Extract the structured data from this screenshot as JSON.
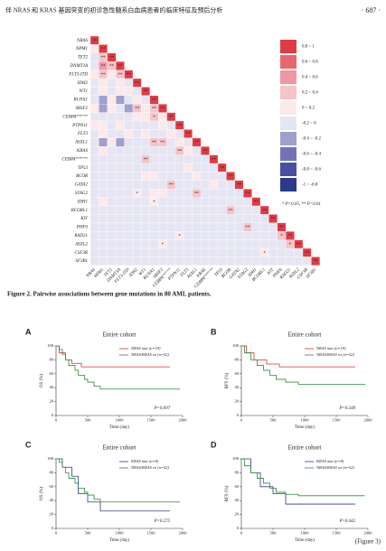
{
  "header": {
    "title": "伴 NRAS 和 KRAS 基因突变的初诊急性髓系白血病患者的临床特征及预后分析",
    "page": "· 687 ·"
  },
  "heatmap": {
    "genes": [
      "NRAS",
      "NPM1",
      "TET2",
      "DNMT3A",
      "FLT3-ITD",
      "IDH2",
      "WT1",
      "RUNX1",
      "SRSF2",
      {
        "text": "CEBPA",
        "sup": "single-mut"
      },
      "PTPN11",
      "FLT3",
      "ASXL1",
      "KRAS",
      {
        "text": "CEBPA",
        "sup": "double-mut"
      },
      "TP53",
      "BCOR",
      "GATA2",
      "STAG2",
      "IDH1",
      "BCORL1",
      "KIT",
      "PHF6",
      "RAD21",
      "ASXL2",
      "CSF3R",
      "SF3B1"
    ],
    "values": [
      [
        1
      ],
      [
        0.1,
        1
      ],
      [
        0,
        0.4,
        1
      ],
      [
        -0.1,
        0.5,
        0.4,
        1
      ],
      [
        0.1,
        0.4,
        0.1,
        0.4,
        1
      ],
      [
        0,
        0.1,
        0,
        0.1,
        0,
        1
      ],
      [
        0,
        0.2,
        -0.1,
        0.1,
        0.2,
        -0.1,
        1
      ],
      [
        -0.1,
        -0.3,
        0.1,
        -0.2,
        -0.1,
        0.1,
        0,
        1
      ],
      [
        0.1,
        -0.2,
        0.2,
        -0.1,
        -0.2,
        0.3,
        0.1,
        0.3,
        1
      ],
      [
        0,
        -0.1,
        0,
        -0.1,
        0,
        0.1,
        0.1,
        0.3,
        0.1,
        1
      ],
      [
        0.1,
        0.2,
        0,
        0.1,
        0,
        0,
        -0.1,
        0,
        0.1,
        0,
        1
      ],
      [
        0,
        0.1,
        0,
        0,
        0.1,
        0,
        0.1,
        -0.1,
        0,
        0.1,
        0,
        1
      ],
      [
        0,
        -0.3,
        0.1,
        -0.2,
        -0.1,
        0,
        -0.1,
        0.4,
        0.4,
        0,
        0.1,
        0,
        1
      ],
      [
        -0.1,
        0.1,
        0,
        0,
        0,
        0,
        0,
        0,
        0,
        0,
        0.4,
        0.1,
        0,
        1
      ],
      [
        0,
        -0.1,
        -0.1,
        -0.1,
        0,
        0,
        0.4,
        0,
        0,
        0,
        0,
        0,
        0,
        0,
        1
      ],
      [
        0,
        -0.1,
        0,
        0,
        0,
        0,
        0,
        0,
        0,
        0,
        0,
        0.1,
        0,
        0,
        0,
        1
      ],
      [
        0,
        0,
        0,
        -0.1,
        0,
        0,
        0.1,
        0.1,
        0,
        0,
        0,
        0,
        0.1,
        0,
        0,
        0,
        1
      ],
      [
        0,
        -0.1,
        0,
        0,
        0,
        0,
        0,
        0,
        0,
        0.3,
        0,
        0,
        0,
        0,
        0.2,
        0,
        0,
        1
      ],
      [
        0,
        -0.1,
        0,
        0,
        0,
        0.2,
        0,
        0.2,
        0.1,
        0,
        0,
        0,
        0.3,
        0,
        0,
        0,
        0,
        0,
        1
      ],
      [
        0,
        0.1,
        0,
        0,
        0,
        0,
        0,
        0.2,
        0,
        0,
        0,
        0,
        0,
        0,
        0,
        0,
        0,
        0,
        0,
        1
      ],
      [
        0,
        0,
        0,
        0,
        0,
        0,
        0,
        0,
        0,
        0,
        0,
        0,
        0,
        0,
        0,
        0,
        0.4,
        0,
        0,
        0,
        1
      ],
      [
        0,
        0,
        0,
        0,
        0,
        0,
        0,
        0,
        0,
        0,
        0,
        0,
        0,
        0,
        0,
        0,
        0,
        0,
        0,
        0,
        0,
        1
      ],
      [
        0,
        0,
        0,
        0,
        0,
        0,
        0,
        0,
        0,
        0,
        0,
        0,
        0,
        0,
        0,
        0,
        0,
        0,
        0.4,
        0,
        0,
        0,
        1
      ],
      [
        0,
        0,
        0,
        0,
        0,
        0,
        0,
        0,
        0,
        0,
        0.2,
        0,
        0,
        0,
        0,
        0,
        0,
        0,
        0,
        0,
        0,
        0,
        0.3,
        1
      ],
      [
        0,
        0,
        0,
        0,
        0,
        0,
        0,
        0,
        0.2,
        0,
        0,
        0,
        0,
        0,
        0,
        0,
        0,
        0,
        0,
        0,
        0,
        0,
        0,
        0.3,
        1
      ],
      [
        0,
        0,
        0,
        0,
        0,
        0,
        0,
        0,
        0,
        0,
        0,
        0,
        0,
        0,
        0,
        0,
        0,
        0,
        0,
        0,
        0.2,
        0,
        0,
        0,
        0,
        1
      ],
      [
        0,
        0,
        0,
        0,
        0,
        0,
        0,
        0,
        0,
        0,
        0,
        0,
        0,
        0,
        0,
        0,
        0,
        0,
        0,
        0,
        0,
        0,
        0,
        0,
        0,
        0,
        1
      ]
    ],
    "sig": [
      [
        "**"
      ],
      [
        null,
        "**"
      ],
      [
        null,
        "**",
        "**"
      ],
      [
        null,
        "**",
        "**",
        "**"
      ],
      [
        null,
        "**",
        null,
        "**",
        "**"
      ],
      [
        null,
        null,
        null,
        null,
        null,
        "**"
      ],
      [
        null,
        null,
        null,
        null,
        null,
        null,
        "**"
      ],
      [
        null,
        null,
        null,
        null,
        null,
        null,
        null,
        "**"
      ],
      [
        null,
        null,
        null,
        null,
        null,
        "**",
        null,
        "**",
        "**"
      ],
      [
        null,
        null,
        null,
        null,
        null,
        null,
        null,
        "*",
        null,
        "**"
      ],
      [
        null,
        null,
        null,
        null,
        null,
        null,
        null,
        null,
        null,
        null,
        "**"
      ],
      [
        null,
        null,
        null,
        null,
        null,
        null,
        null,
        null,
        null,
        null,
        null,
        "**"
      ],
      [
        null,
        null,
        null,
        null,
        null,
        null,
        null,
        "**",
        "**",
        null,
        null,
        null,
        "**"
      ],
      [
        null,
        null,
        null,
        null,
        null,
        null,
        null,
        null,
        null,
        null,
        "**",
        null,
        null,
        "**"
      ],
      [
        null,
        null,
        null,
        null,
        null,
        null,
        "**",
        null,
        null,
        null,
        null,
        null,
        null,
        null,
        "**"
      ],
      [
        null,
        null,
        null,
        null,
        null,
        null,
        null,
        null,
        null,
        null,
        null,
        null,
        null,
        null,
        null,
        "**"
      ],
      [
        null,
        null,
        null,
        null,
        null,
        null,
        null,
        null,
        null,
        null,
        null,
        null,
        null,
        null,
        null,
        null,
        "**"
      ],
      [
        null,
        null,
        null,
        null,
        null,
        null,
        null,
        null,
        null,
        "**",
        null,
        null,
        null,
        null,
        null,
        null,
        null,
        "**"
      ],
      [
        null,
        null,
        null,
        null,
        null,
        "*",
        null,
        null,
        null,
        null,
        null,
        null,
        "**",
        null,
        null,
        null,
        null,
        null,
        "**"
      ],
      [
        null,
        null,
        null,
        null,
        null,
        null,
        null,
        "*",
        null,
        null,
        null,
        null,
        null,
        null,
        null,
        null,
        null,
        null,
        null,
        "**"
      ],
      [
        null,
        null,
        null,
        null,
        null,
        null,
        null,
        null,
        null,
        null,
        null,
        null,
        null,
        null,
        null,
        null,
        "**",
        null,
        null,
        null,
        "**"
      ],
      [
        null,
        null,
        null,
        null,
        null,
        null,
        null,
        null,
        null,
        null,
        null,
        null,
        null,
        null,
        null,
        null,
        null,
        null,
        null,
        null,
        null,
        "**"
      ],
      [
        null,
        null,
        null,
        null,
        null,
        null,
        null,
        null,
        null,
        null,
        null,
        null,
        null,
        null,
        null,
        null,
        null,
        null,
        "**",
        null,
        null,
        null,
        "**"
      ],
      [
        null,
        null,
        null,
        null,
        null,
        null,
        null,
        null,
        null,
        null,
        "*",
        null,
        null,
        null,
        null,
        null,
        null,
        null,
        null,
        null,
        null,
        null,
        "*",
        "**"
      ],
      [
        null,
        null,
        null,
        null,
        null,
        null,
        null,
        null,
        "*",
        null,
        null,
        null,
        null,
        null,
        null,
        null,
        null,
        null,
        null,
        null,
        null,
        null,
        null,
        "*",
        "**"
      ],
      [
        null,
        null,
        null,
        null,
        null,
        null,
        null,
        null,
        null,
        null,
        null,
        null,
        null,
        null,
        null,
        null,
        null,
        null,
        null,
        null,
        "*",
        null,
        null,
        null,
        null,
        "**"
      ],
      [
        null,
        null,
        null,
        null,
        null,
        null,
        null,
        null,
        null,
        null,
        null,
        null,
        null,
        null,
        null,
        null,
        null,
        null,
        null,
        null,
        null,
        null,
        null,
        null,
        null,
        null,
        "**"
      ]
    ],
    "bins": [
      -1,
      -0.8,
      -0.6,
      -0.4,
      -0.2,
      0,
      0.2,
      0.4,
      0.6,
      0.8,
      1
    ],
    "bin_labels": [
      "-1 ~ -0.8",
      "-0.8 ~ -0.6",
      "-0.6 ~ -0.4",
      "-0.4 ~ -0.2",
      "-0.2 ~ 0",
      "0 ~ 0.2",
      "0.2 ~ 0.4",
      "0.4 ~ 0.6",
      "0.6 ~ 0.8",
      "0.8 ~ 1"
    ],
    "bin_colors": [
      "#2a3a8c",
      "#4a4fa0",
      "#7272b4",
      "#a09fce",
      "#e6e5f3",
      "#fbe9eb",
      "#f5c3c9",
      "#ef98a2",
      "#e8676f",
      "#e03b44"
    ],
    "note": "* P<0.05, ** P<0.01"
  },
  "figure2_caption": "Figure 2.  Pairwise associations between gene mutations in 80 AML patients.",
  "km_panels": [
    {
      "letter": "A",
      "title": "Entire cohort",
      "ylabel": "OS (%)",
      "xlabel": "Time (day)",
      "xlim": [
        0,
        2000
      ],
      "ylim": [
        0,
        100
      ],
      "xticks": [
        0,
        500,
        1000,
        1500,
        2000
      ],
      "yticks": [
        0,
        20,
        40,
        60,
        80,
        100
      ],
      "p": "P=0.097",
      "series": [
        {
          "name": "NRAS mut (n=19)",
          "color": "#d7312e",
          "x": [
            0,
            50,
            150,
            250,
            400,
            1800
          ],
          "values": [
            100,
            90,
            80,
            75,
            70,
            70
          ]
        },
        {
          "name": "NRAS/KRAS wt (n=52)",
          "color": "#2e8b3a",
          "x": [
            0,
            50,
            100,
            150,
            200,
            300,
            350,
            450,
            500,
            600,
            700,
            1950
          ],
          "values": [
            100,
            95,
            88,
            80,
            72,
            65,
            58,
            52,
            48,
            42,
            38,
            37
          ]
        }
      ]
    },
    {
      "letter": "B",
      "title": "Entire cohort",
      "ylabel": "RFS (%)",
      "xlabel": "Time (day)",
      "xlim": [
        0,
        2000
      ],
      "ylim": [
        0,
        100
      ],
      "xticks": [
        0,
        500,
        1000,
        1500,
        2000
      ],
      "yticks": [
        0,
        20,
        40,
        60,
        80,
        100
      ],
      "p": "P=0.249",
      "series": [
        {
          "name": "NRAS mut (n=19)",
          "color": "#d7312e",
          "x": [
            0,
            80,
            200,
            400,
            600,
            1800
          ],
          "values": [
            100,
            90,
            80,
            74,
            70,
            70
          ]
        },
        {
          "name": "NRAS/KRAS wt (n=52)",
          "color": "#2e8b3a",
          "x": [
            0,
            50,
            150,
            250,
            350,
            450,
            550,
            700,
            900,
            1950
          ],
          "values": [
            100,
            90,
            80,
            72,
            65,
            58,
            52,
            48,
            45,
            44
          ]
        }
      ]
    },
    {
      "letter": "C",
      "title": "Entire cohort",
      "ylabel": "OS (%)",
      "xlabel": "Time (day)",
      "xlim": [
        0,
        2000
      ],
      "ylim": [
        0,
        100
      ],
      "xticks": [
        0,
        500,
        1000,
        1500,
        2000
      ],
      "yticks": [
        0,
        20,
        40,
        60,
        80,
        100
      ],
      "p": "P=0.275",
      "series": [
        {
          "name": "KRAS mut (n=8)",
          "color": "#2f3a8f",
          "x": [
            0,
            100,
            250,
            350,
            500,
            700,
            1800
          ],
          "values": [
            100,
            88,
            75,
            50,
            38,
            25,
            25
          ]
        },
        {
          "name": "NRAS/KRAS wt (n=52)",
          "color": "#2e8b3a",
          "x": [
            0,
            50,
            100,
            150,
            200,
            300,
            350,
            450,
            500,
            600,
            700,
            1950
          ],
          "values": [
            100,
            95,
            88,
            80,
            72,
            65,
            58,
            52,
            48,
            42,
            38,
            37
          ]
        }
      ]
    },
    {
      "letter": "D",
      "title": "Entire cohort",
      "ylabel": "RFS (%)",
      "xlabel": "Time (day)",
      "xlim": [
        0,
        2000
      ],
      "ylim": [
        0,
        100
      ],
      "xticks": [
        0,
        500,
        1000,
        1500,
        2000
      ],
      "yticks": [
        0,
        20,
        40,
        60,
        80,
        100
      ],
      "p": "P=0.442",
      "series": [
        {
          "name": "KRAS mut (n=8)",
          "color": "#2f3a8f",
          "x": [
            0,
            150,
            300,
            500,
            700,
            1800
          ],
          "values": [
            100,
            80,
            60,
            50,
            35,
            35
          ]
        },
        {
          "name": "NRAS/KRAS wt (n=52)",
          "color": "#2e8b3a",
          "x": [
            0,
            50,
            150,
            250,
            350,
            450,
            550,
            700,
            900,
            1950
          ],
          "values": [
            100,
            90,
            80,
            72,
            65,
            58,
            52,
            49,
            47,
            47
          ]
        }
      ]
    }
  ],
  "figure3_label": "(Figure 3)"
}
